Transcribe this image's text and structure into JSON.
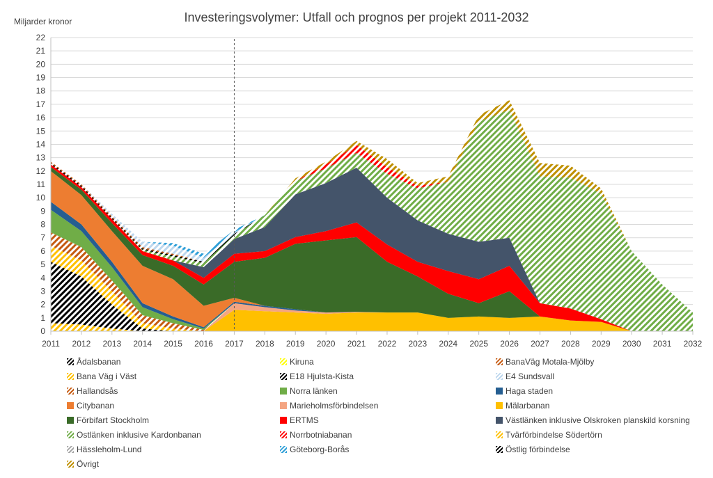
{
  "chart_data": {
    "type": "area",
    "title": "Investeringsvolymer: Utfall och prognos per projekt 2011-2032",
    "ylabel": "Miljarder kronor",
    "xlabel": "",
    "ylim": [
      0,
      22
    ],
    "yticks": [
      0,
      1,
      2,
      3,
      4,
      5,
      6,
      7,
      8,
      9,
      10,
      11,
      12,
      13,
      14,
      15,
      16,
      17,
      18,
      19,
      20,
      21,
      22
    ],
    "categories": [
      "2011",
      "2012",
      "2013",
      "2014",
      "2015",
      "2016",
      "2017",
      "2018",
      "2019",
      "2020",
      "2021",
      "2022",
      "2023",
      "2024",
      "2025",
      "2026",
      "2027",
      "2028",
      "2029",
      "2030",
      "2031",
      "2032"
    ],
    "divider_year": "2017",
    "stacking": "stacked",
    "series": [
      {
        "name": "Östlig förbindelse",
        "color": "#000000",
        "pattern": "hatch",
        "values": [
          0,
          0,
          0,
          0,
          0,
          0,
          0,
          0,
          0,
          0,
          0,
          0,
          0,
          0,
          0,
          0,
          0,
          0,
          0,
          0,
          0,
          0
        ]
      },
      {
        "name": "Tvärförbindelse Södertörn",
        "color": "#ffc000",
        "pattern": "hatch",
        "values": [
          0.6,
          0.5,
          0.2,
          0,
          0,
          0,
          0,
          0,
          0,
          0,
          0,
          0,
          0,
          0,
          0,
          0,
          0,
          0,
          0,
          0,
          0,
          0
        ]
      },
      {
        "name": "Mälarbanan",
        "color": "#ffc000",
        "pattern": "solid",
        "values": [
          0,
          0,
          0,
          0,
          0,
          0,
          1.6,
          1.5,
          1.4,
          1.3,
          1.4,
          1.4,
          1.4,
          1.0,
          1.1,
          1.0,
          1.1,
          0.8,
          0.7,
          0,
          0,
          0
        ]
      },
      {
        "name": "Marieholmsförbindelsen",
        "color": "#f4a582",
        "pattern": "solid",
        "values": [
          0,
          0,
          0,
          0,
          0,
          0,
          0.5,
          0.3,
          0.15,
          0.1,
          0.05,
          0,
          0,
          0,
          0,
          0,
          0,
          0,
          0,
          0,
          0,
          0
        ]
      },
      {
        "name": "E18 Hjulsta-Kista",
        "color": "#000000",
        "pattern": "hatch",
        "values": [
          4.6,
          3.6,
          1.8,
          0.2,
          0,
          0,
          0,
          0,
          0,
          0,
          0,
          0,
          0,
          0,
          0,
          0,
          0,
          0,
          0,
          0,
          0,
          0
        ]
      },
      {
        "name": "Bana Väg i Väst",
        "color": "#ffc000",
        "pattern": "hatch",
        "values": [
          1.2,
          1.2,
          1.0,
          0.4,
          0.2,
          0,
          0,
          0,
          0,
          0,
          0,
          0,
          0,
          0,
          0,
          0,
          0,
          0,
          0,
          0,
          0,
          0
        ]
      },
      {
        "name": "Hallandsås",
        "color": "#c55a11",
        "pattern": "hatch",
        "values": [
          1.0,
          1.0,
          0.8,
          0.6,
          0.4,
          0.1,
          0,
          0,
          0,
          0,
          0,
          0,
          0,
          0,
          0,
          0,
          0,
          0,
          0,
          0,
          0,
          0
        ]
      },
      {
        "name": "Norra länken",
        "color": "#70ad47",
        "pattern": "solid",
        "values": [
          1.7,
          1.2,
          1.0,
          0.6,
          0.3,
          0.1,
          0,
          0,
          0,
          0,
          0,
          0,
          0,
          0,
          0,
          0,
          0,
          0,
          0,
          0,
          0,
          0
        ]
      },
      {
        "name": "Haga staden",
        "color": "#255e91",
        "pattern": "solid",
        "values": [
          0.6,
          0.5,
          0.4,
          0.3,
          0.2,
          0.1,
          0.1,
          0.1,
          0.1,
          0,
          0,
          0,
          0,
          0,
          0,
          0,
          0,
          0,
          0,
          0,
          0,
          0
        ]
      },
      {
        "name": "Citybanan",
        "color": "#ed7d31",
        "pattern": "solid",
        "values": [
          2.3,
          2.2,
          2.3,
          2.8,
          2.8,
          1.6,
          0.3,
          0,
          0,
          0,
          0,
          0,
          0,
          0,
          0,
          0,
          0,
          0,
          0,
          0,
          0,
          0
        ]
      },
      {
        "name": "Förbifart Stockholm",
        "color": "#3a6b28",
        "pattern": "solid",
        "values": [
          0.3,
          0.4,
          0.6,
          0.8,
          1.0,
          1.6,
          2.7,
          3.6,
          4.9,
          5.4,
          5.6,
          3.8,
          2.7,
          1.8,
          1.0,
          2.0,
          0,
          0,
          0,
          0,
          0,
          0
        ]
      },
      {
        "name": "ERTMS",
        "color": "#ff0000",
        "pattern": "solid",
        "values": [
          0.2,
          0.2,
          0.3,
          0.3,
          0.4,
          0.5,
          0.6,
          0.5,
          0.5,
          0.7,
          1.1,
          1.3,
          1.1,
          1.7,
          1.8,
          1.9,
          1.0,
          0.9,
          0.2,
          0,
          0,
          0
        ]
      },
      {
        "name": "Västlänken inklusive Olskroken planskild korsning",
        "color": "#44546a",
        "pattern": "solid",
        "values": [
          0,
          0,
          0,
          0,
          0,
          0.8,
          1.1,
          1.8,
          3.2,
          3.6,
          4.1,
          3.5,
          3.1,
          2.8,
          2.8,
          2.1,
          0,
          0,
          0,
          0,
          0,
          0
        ]
      },
      {
        "name": "Ostlänken inklusive Kardonbanan",
        "color": "#70ad47",
        "pattern": "hatch",
        "values": [
          0,
          0,
          0,
          0.1,
          0.3,
          0.3,
          0.3,
          0.9,
          1.0,
          1.1,
          1.1,
          1.8,
          2.4,
          3.9,
          9.0,
          9.6,
          9.5,
          9.8,
          9.4,
          6.0,
          3.5,
          1.4
        ]
      },
      {
        "name": "Norrbotniabanan",
        "color": "#ff0000",
        "pattern": "hatch",
        "values": [
          0,
          0,
          0,
          0,
          0,
          0,
          0,
          0,
          0,
          0.3,
          0.6,
          0.5,
          0.2,
          0,
          0,
          0,
          0,
          0,
          0,
          0,
          0,
          0
        ]
      },
      {
        "name": "Ådalsbanan",
        "color": "#000000",
        "pattern": "hatch",
        "values": [
          0.1,
          0.1,
          0.1,
          0.1,
          0.1,
          0.1,
          0.1,
          0,
          0,
          0,
          0,
          0,
          0,
          0,
          0,
          0,
          0,
          0,
          0,
          0,
          0,
          0
        ]
      },
      {
        "name": "Kiruna",
        "color": "#ffff00",
        "pattern": "hatch",
        "values": [
          0,
          0,
          0,
          0,
          0,
          0,
          0,
          0,
          0,
          0,
          0,
          0,
          0,
          0,
          0,
          0,
          0,
          0,
          0,
          0,
          0,
          0
        ]
      },
      {
        "name": "BanaVäg Motala-Mjölby",
        "color": "#c55a11",
        "pattern": "hatch",
        "values": [
          0.1,
          0.1,
          0.1,
          0.1,
          0.1,
          0,
          0,
          0,
          0,
          0,
          0,
          0,
          0,
          0,
          0,
          0,
          0,
          0,
          0,
          0,
          0,
          0
        ]
      },
      {
        "name": "E4 Sundsvall",
        "color": "#bdd7ee",
        "pattern": "hatch",
        "values": [
          0,
          0,
          0.2,
          0.4,
          0.6,
          0.3,
          0.1,
          0,
          0,
          0,
          0,
          0,
          0,
          0,
          0,
          0,
          0,
          0,
          0,
          0,
          0,
          0
        ]
      },
      {
        "name": "Hässleholm-Lund",
        "color": "#a6a6a6",
        "pattern": "hatch",
        "values": [
          0,
          0,
          0,
          0,
          0,
          0,
          0,
          0,
          0,
          0,
          0,
          0,
          0,
          0,
          0,
          0,
          0,
          0,
          0,
          0,
          0,
          0
        ]
      },
      {
        "name": "Göteborg-Borås",
        "color": "#2e9fd8",
        "pattern": "hatch",
        "values": [
          0,
          0,
          0,
          0,
          0.2,
          0.3,
          0.2,
          0,
          0,
          0,
          0,
          0,
          0,
          0,
          0,
          0,
          0,
          0,
          0,
          0,
          0,
          0
        ]
      },
      {
        "name": "Övrigt",
        "color": "#bf9000",
        "pattern": "hatch",
        "values": [
          0,
          0,
          0,
          0,
          0,
          0,
          0,
          0,
          0.2,
          0.2,
          0.3,
          0.6,
          0.2,
          0.4,
          0.5,
          0.7,
          1.0,
          0.9,
          0.4,
          0,
          0,
          0
        ]
      }
    ],
    "legend_order": [
      "Ådalsbanan",
      "Kiruna",
      "BanaVäg Motala-Mjölby",
      "Bana Väg i Väst",
      "E18 Hjulsta-Kista",
      "E4 Sundsvall",
      "Hallandsås",
      "Norra länken",
      "Haga staden",
      "Citybanan",
      "Marieholmsförbindelsen",
      "Mälarbanan",
      "Förbifart Stockholm",
      "ERTMS",
      "Västlänken inklusive Olskroken planskild korsning",
      "Ostlänken inklusive Kardonbanan",
      "Norrbotniabanan",
      "Tvärförbindelse Södertörn",
      "Hässleholm-Lund",
      "Göteborg-Borås",
      "Östlig förbindelse",
      "Övrigt"
    ],
    "legend_position": "bottom",
    "grid": true
  }
}
